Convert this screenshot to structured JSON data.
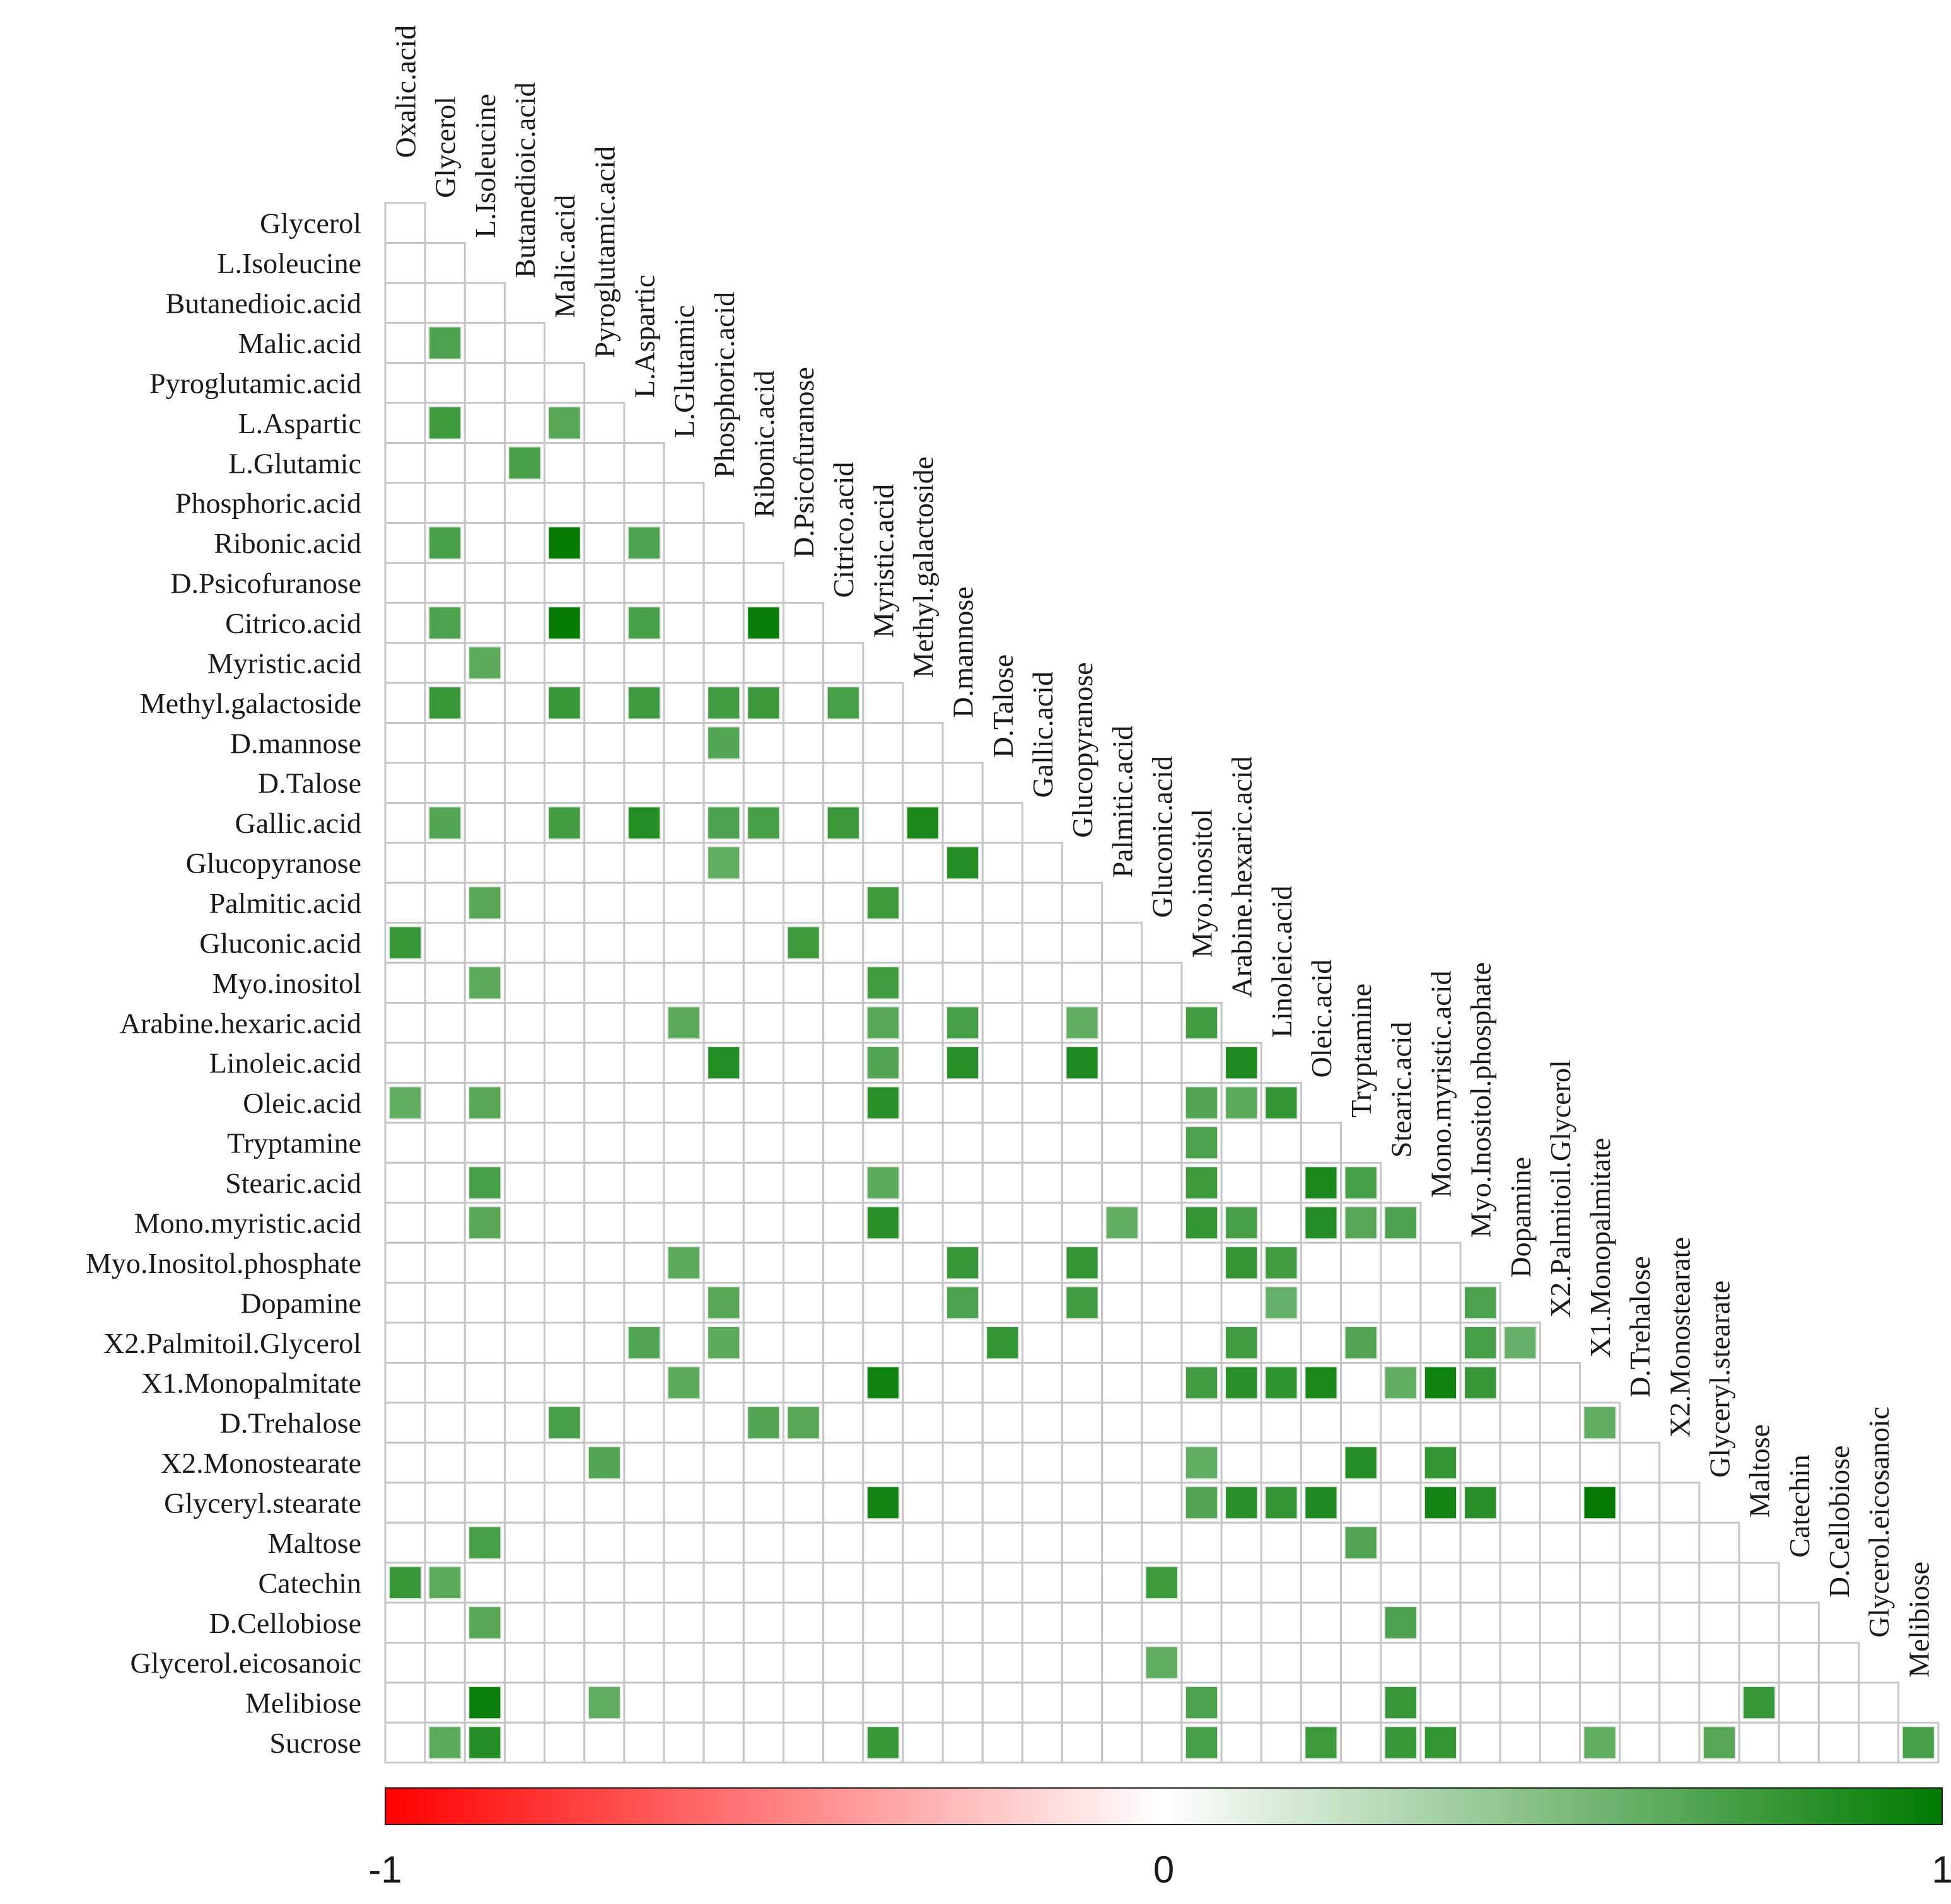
{
  "chart_data": {
    "type": "heatmap",
    "title": "",
    "layout": "lower-triangular correlation matrix",
    "variables": [
      "Oxalic.acid",
      "Glycerol",
      "L.Isoleucine",
      "Butanedioic.acid",
      "Malic.acid",
      "Pyroglutamic.acid",
      "L.Aspartic",
      "L.Glutamic",
      "Phosphoric.acid",
      "Ribonic.acid",
      "D.Psicofuranose",
      "Citrico.acid",
      "Myristic.acid",
      "Methyl.galactoside",
      "D.mannose",
      "D.Talose",
      "Gallic.acid",
      "Glucopyranose",
      "Palmitic.acid",
      "Gluconic.acid",
      "Myo.inositol",
      "Arabine.hexaric.acid",
      "Linoleic.acid",
      "Oleic.acid",
      "Tryptamine",
      "Stearic.acid",
      "Mono.myristic.acid",
      "Myo.Inositol.phosphate",
      "Dopamine",
      "X2.Palmitoil.Glycerol",
      "X1.Monopalmitate",
      "D.Trehalose",
      "X2.Monostearate",
      "Glyceryl.stearate",
      "Maltose",
      "Catechin",
      "D.Cellobiose",
      "Glycerol.eicosanoic",
      "Melibiose",
      "Sucrose"
    ],
    "significant_cells": [
      {
        "row": "Malic.acid",
        "col": "Glycerol",
        "value": 0.7
      },
      {
        "row": "L.Aspartic",
        "col": "Glycerol",
        "value": 0.76
      },
      {
        "row": "L.Aspartic",
        "col": "Malic.acid",
        "value": 0.66
      },
      {
        "row": "L.Glutamic",
        "col": "Butanedioic.acid",
        "value": 0.72
      },
      {
        "row": "Ribonic.acid",
        "col": "Glycerol",
        "value": 0.72
      },
      {
        "row": "Ribonic.acid",
        "col": "Malic.acid",
        "value": 0.98
      },
      {
        "row": "Ribonic.acid",
        "col": "L.Aspartic",
        "value": 0.7
      },
      {
        "row": "Citrico.acid",
        "col": "Glycerol",
        "value": 0.7
      },
      {
        "row": "Citrico.acid",
        "col": "Malic.acid",
        "value": 0.98
      },
      {
        "row": "Citrico.acid",
        "col": "L.Aspartic",
        "value": 0.72
      },
      {
        "row": "Citrico.acid",
        "col": "Ribonic.acid",
        "value": 0.97
      },
      {
        "row": "Myristic.acid",
        "col": "L.Isoleucine",
        "value": 0.64
      },
      {
        "row": "Methyl.galactoside",
        "col": "Glycerol",
        "value": 0.78
      },
      {
        "row": "Methyl.galactoside",
        "col": "Malic.acid",
        "value": 0.78
      },
      {
        "row": "Methyl.galactoside",
        "col": "L.Aspartic",
        "value": 0.75
      },
      {
        "row": "Methyl.galactoside",
        "col": "Phosphoric.acid",
        "value": 0.74
      },
      {
        "row": "Methyl.galactoside",
        "col": "Ribonic.acid",
        "value": 0.77
      },
      {
        "row": "Methyl.galactoside",
        "col": "Citrico.acid",
        "value": 0.72
      },
      {
        "row": "D.mannose",
        "col": "Phosphoric.acid",
        "value": 0.68
      },
      {
        "row": "Gallic.acid",
        "col": "Glycerol",
        "value": 0.68
      },
      {
        "row": "Gallic.acid",
        "col": "Malic.acid",
        "value": 0.74
      },
      {
        "row": "Gallic.acid",
        "col": "L.Aspartic",
        "value": 0.86
      },
      {
        "row": "Gallic.acid",
        "col": "Phosphoric.acid",
        "value": 0.7
      },
      {
        "row": "Gallic.acid",
        "col": "Ribonic.acid",
        "value": 0.72
      },
      {
        "row": "Gallic.acid",
        "col": "Citrico.acid",
        "value": 0.77
      },
      {
        "row": "Gallic.acid",
        "col": "Methyl.galactoside",
        "value": 0.9
      },
      {
        "row": "Glucopyranose",
        "col": "Phosphoric.acid",
        "value": 0.62
      },
      {
        "row": "Glucopyranose",
        "col": "D.mannose",
        "value": 0.86
      },
      {
        "row": "Palmitic.acid",
        "col": "L.Isoleucine",
        "value": 0.66
      },
      {
        "row": "Palmitic.acid",
        "col": "Myristic.acid",
        "value": 0.76
      },
      {
        "row": "Gluconic.acid",
        "col": "Oxalic.acid",
        "value": 0.78
      },
      {
        "row": "Gluconic.acid",
        "col": "D.Psicofuranose",
        "value": 0.76
      },
      {
        "row": "Myo.inositol",
        "col": "L.Isoleucine",
        "value": 0.64
      },
      {
        "row": "Myo.inositol",
        "col": "Myristic.acid",
        "value": 0.74
      },
      {
        "row": "Arabine.hexaric.acid",
        "col": "L.Glutamic",
        "value": 0.64
      },
      {
        "row": "Arabine.hexaric.acid",
        "col": "Myristic.acid",
        "value": 0.66
      },
      {
        "row": "Arabine.hexaric.acid",
        "col": "D.mannose",
        "value": 0.72
      },
      {
        "row": "Arabine.hexaric.acid",
        "col": "Glucopyranose",
        "value": 0.62
      },
      {
        "row": "Arabine.hexaric.acid",
        "col": "Myo.inositol",
        "value": 0.74
      },
      {
        "row": "Linoleic.acid",
        "col": "Phosphoric.acid",
        "value": 0.86
      },
      {
        "row": "Linoleic.acid",
        "col": "Myristic.acid",
        "value": 0.68
      },
      {
        "row": "Linoleic.acid",
        "col": "D.mannose",
        "value": 0.84
      },
      {
        "row": "Linoleic.acid",
        "col": "Glucopyranose",
        "value": 0.88
      },
      {
        "row": "Linoleic.acid",
        "col": "Arabine.hexaric.acid",
        "value": 0.88
      },
      {
        "row": "Oleic.acid",
        "col": "Oxalic.acid",
        "value": 0.62
      },
      {
        "row": "Oleic.acid",
        "col": "L.Isoleucine",
        "value": 0.66
      },
      {
        "row": "Oleic.acid",
        "col": "Myristic.acid",
        "value": 0.84
      },
      {
        "row": "Oleic.acid",
        "col": "Myo.inositol",
        "value": 0.68
      },
      {
        "row": "Oleic.acid",
        "col": "Arabine.hexaric.acid",
        "value": 0.64
      },
      {
        "row": "Oleic.acid",
        "col": "Linoleic.acid",
        "value": 0.8
      },
      {
        "row": "Tryptamine",
        "col": "Myo.inositol",
        "value": 0.7
      },
      {
        "row": "Stearic.acid",
        "col": "L.Isoleucine",
        "value": 0.72
      },
      {
        "row": "Stearic.acid",
        "col": "Myristic.acid",
        "value": 0.64
      },
      {
        "row": "Stearic.acid",
        "col": "Myo.inositol",
        "value": 0.76
      },
      {
        "row": "Stearic.acid",
        "col": "Oleic.acid",
        "value": 0.9
      },
      {
        "row": "Stearic.acid",
        "col": "Tryptamine",
        "value": 0.72
      },
      {
        "row": "Mono.myristic.acid",
        "col": "L.Isoleucine",
        "value": 0.66
      },
      {
        "row": "Mono.myristic.acid",
        "col": "Myristic.acid",
        "value": 0.84
      },
      {
        "row": "Mono.myristic.acid",
        "col": "Palmitic.acid",
        "value": 0.62
      },
      {
        "row": "Mono.myristic.acid",
        "col": "Myo.inositol",
        "value": 0.8
      },
      {
        "row": "Mono.myristic.acid",
        "col": "Arabine.hexaric.acid",
        "value": 0.72
      },
      {
        "row": "Mono.myristic.acid",
        "col": "Oleic.acid",
        "value": 0.86
      },
      {
        "row": "Mono.myristic.acid",
        "col": "Tryptamine",
        "value": 0.66
      },
      {
        "row": "Mono.myristic.acid",
        "col": "Stearic.acid",
        "value": 0.7
      },
      {
        "row": "Myo.Inositol.phosphate",
        "col": "L.Glutamic",
        "value": 0.64
      },
      {
        "row": "Myo.Inositol.phosphate",
        "col": "D.mannose",
        "value": 0.78
      },
      {
        "row": "Myo.Inositol.phosphate",
        "col": "Glucopyranose",
        "value": 0.8
      },
      {
        "row": "Myo.Inositol.phosphate",
        "col": "Arabine.hexaric.acid",
        "value": 0.8
      },
      {
        "row": "Myo.Inositol.phosphate",
        "col": "Linoleic.acid",
        "value": 0.74
      },
      {
        "row": "Dopamine",
        "col": "Phosphoric.acid",
        "value": 0.66
      },
      {
        "row": "Dopamine",
        "col": "D.mannose",
        "value": 0.7
      },
      {
        "row": "Dopamine",
        "col": "Glucopyranose",
        "value": 0.74
      },
      {
        "row": "Dopamine",
        "col": "Linoleic.acid",
        "value": 0.6
      },
      {
        "row": "Dopamine",
        "col": "Myo.Inositol.phosphate",
        "value": 0.7
      },
      {
        "row": "X2.Palmitoil.Glycerol",
        "col": "L.Aspartic",
        "value": 0.68
      },
      {
        "row": "X2.Palmitoil.Glycerol",
        "col": "Phosphoric.acid",
        "value": 0.64
      },
      {
        "row": "X2.Palmitoil.Glycerol",
        "col": "D.Talose",
        "value": 0.8
      },
      {
        "row": "X2.Palmitoil.Glycerol",
        "col": "Arabine.hexaric.acid",
        "value": 0.74
      },
      {
        "row": "X2.Palmitoil.Glycerol",
        "col": "Tryptamine",
        "value": 0.68
      },
      {
        "row": "X2.Palmitoil.Glycerol",
        "col": "Myo.Inositol.phosphate",
        "value": 0.72
      },
      {
        "row": "X2.Palmitoil.Glycerol",
        "col": "Dopamine",
        "value": 0.6
      },
      {
        "row": "X1.Monopalmitate",
        "col": "L.Glutamic",
        "value": 0.64
      },
      {
        "row": "X1.Monopalmitate",
        "col": "Myristic.acid",
        "value": 0.94
      },
      {
        "row": "X1.Monopalmitate",
        "col": "Myo.inositol",
        "value": 0.74
      },
      {
        "row": "X1.Monopalmitate",
        "col": "Arabine.hexaric.acid",
        "value": 0.84
      },
      {
        "row": "X1.Monopalmitate",
        "col": "Linoleic.acid",
        "value": 0.82
      },
      {
        "row": "X1.Monopalmitate",
        "col": "Oleic.acid",
        "value": 0.9
      },
      {
        "row": "X1.Monopalmitate",
        "col": "Stearic.acid",
        "value": 0.62
      },
      {
        "row": "X1.Monopalmitate",
        "col": "Mono.myristic.acid",
        "value": 0.94
      },
      {
        "row": "X1.Monopalmitate",
        "col": "Myo.Inositol.phosphate",
        "value": 0.78
      },
      {
        "row": "D.Trehalose",
        "col": "Malic.acid",
        "value": 0.72
      },
      {
        "row": "D.Trehalose",
        "col": "Ribonic.acid",
        "value": 0.68
      },
      {
        "row": "D.Trehalose",
        "col": "D.Psicofuranose",
        "value": 0.66
      },
      {
        "row": "D.Trehalose",
        "col": "X1.Monopalmitate",
        "value": 0.62
      },
      {
        "row": "X2.Monostearate",
        "col": "Pyroglutamic.acid",
        "value": 0.68
      },
      {
        "row": "X2.Monostearate",
        "col": "Myo.inositol",
        "value": 0.62
      },
      {
        "row": "X2.Monostearate",
        "col": "Tryptamine",
        "value": 0.86
      },
      {
        "row": "X2.Monostearate",
        "col": "Mono.myristic.acid",
        "value": 0.8
      },
      {
        "row": "Glyceryl.stearate",
        "col": "Myristic.acid",
        "value": 0.92
      },
      {
        "row": "Glyceryl.stearate",
        "col": "Myo.inositol",
        "value": 0.68
      },
      {
        "row": "Glyceryl.stearate",
        "col": "Arabine.hexaric.acid",
        "value": 0.84
      },
      {
        "row": "Glyceryl.stearate",
        "col": "Linoleic.acid",
        "value": 0.8
      },
      {
        "row": "Glyceryl.stearate",
        "col": "Oleic.acid",
        "value": 0.88
      },
      {
        "row": "Glyceryl.stearate",
        "col": "Mono.myristic.acid",
        "value": 0.92
      },
      {
        "row": "Glyceryl.stearate",
        "col": "Myo.Inositol.phosphate",
        "value": 0.84
      },
      {
        "row": "Glyceryl.stearate",
        "col": "X1.Monopalmitate",
        "value": 0.99
      },
      {
        "row": "Maltose",
        "col": "L.Isoleucine",
        "value": 0.72
      },
      {
        "row": "Maltose",
        "col": "Tryptamine",
        "value": 0.68
      },
      {
        "row": "Catechin",
        "col": "Oxalic.acid",
        "value": 0.78
      },
      {
        "row": "Catechin",
        "col": "Glycerol",
        "value": 0.64
      },
      {
        "row": "Catechin",
        "col": "Gluconic.acid",
        "value": 0.76
      },
      {
        "row": "D.Cellobiose",
        "col": "L.Isoleucine",
        "value": 0.66
      },
      {
        "row": "D.Cellobiose",
        "col": "Stearic.acid",
        "value": 0.7
      },
      {
        "row": "Glycerol.eicosanoic",
        "col": "Gluconic.acid",
        "value": 0.62
      },
      {
        "row": "Melibiose",
        "col": "L.Isoleucine",
        "value": 0.96
      },
      {
        "row": "Melibiose",
        "col": "Pyroglutamic.acid",
        "value": 0.62
      },
      {
        "row": "Melibiose",
        "col": "Myo.inositol",
        "value": 0.7
      },
      {
        "row": "Melibiose",
        "col": "Stearic.acid",
        "value": 0.78
      },
      {
        "row": "Melibiose",
        "col": "Maltose",
        "value": 0.78
      },
      {
        "row": "Sucrose",
        "col": "Glycerol",
        "value": 0.64
      },
      {
        "row": "Sucrose",
        "col": "L.Isoleucine",
        "value": 0.86
      },
      {
        "row": "Sucrose",
        "col": "Myristic.acid",
        "value": 0.78
      },
      {
        "row": "Sucrose",
        "col": "Myo.inositol",
        "value": 0.72
      },
      {
        "row": "Sucrose",
        "col": "Oleic.acid",
        "value": 0.76
      },
      {
        "row": "Sucrose",
        "col": "Stearic.acid",
        "value": 0.78
      },
      {
        "row": "Sucrose",
        "col": "Mono.myristic.acid",
        "value": 0.8
      },
      {
        "row": "Sucrose",
        "col": "X1.Monopalmitate",
        "value": 0.62
      },
      {
        "row": "Sucrose",
        "col": "Glyceryl.stearate",
        "value": 0.66
      },
      {
        "row": "Sucrose",
        "col": "Melibiose",
        "value": 0.72
      }
    ],
    "colorbar": {
      "range": [
        -1,
        1
      ],
      "ticks": [
        "-1",
        "0",
        "1"
      ],
      "colors": {
        "negative": "#ff0000",
        "zero": "#ffffff",
        "positive": "#007a00"
      }
    },
    "grid": true,
    "legend": "bottom"
  }
}
